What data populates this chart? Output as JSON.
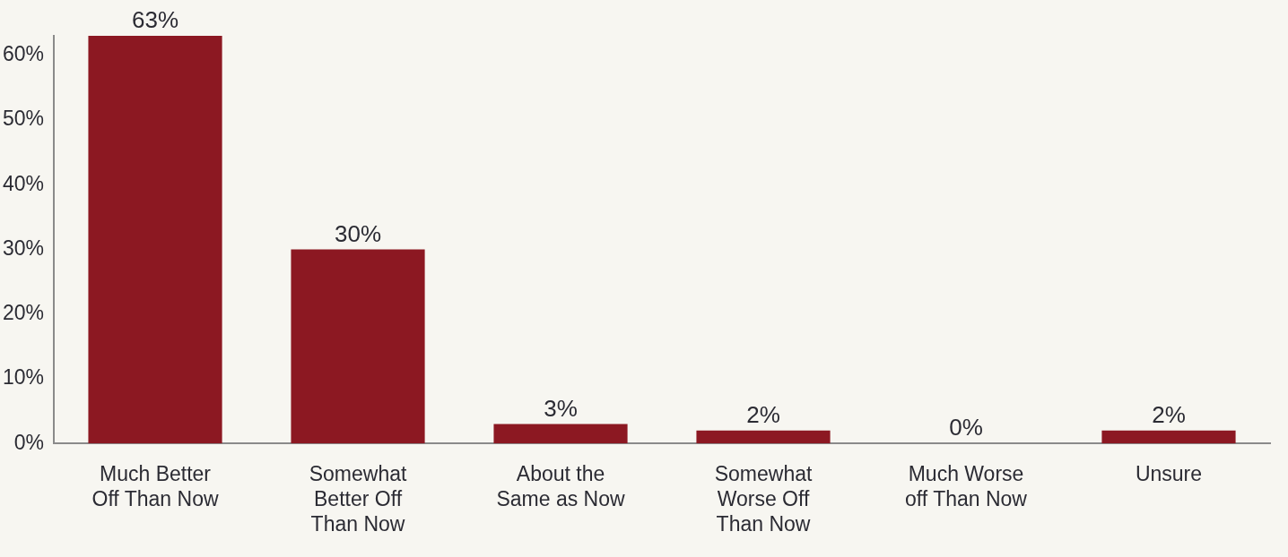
{
  "chart_data": {
    "type": "bar",
    "categories": [
      "Much Better Off Than Now",
      "Somewhat Better Off Than Now",
      "About the Same as Now",
      "Somewhat Worse Off Than Now",
      "Much Worse off Than Now",
      "Unsure"
    ],
    "values": [
      63,
      30,
      3,
      2,
      0,
      2
    ],
    "value_labels": [
      "63%",
      "30%",
      "3%",
      "2%",
      "0%",
      "2%"
    ],
    "color": "#8c1822",
    "ylim": [
      0,
      63
    ],
    "yticks": [
      {
        "value": 0,
        "label": "0%"
      },
      {
        "value": 10,
        "label": "10%"
      },
      {
        "value": 20,
        "label": "20%"
      },
      {
        "value": 30,
        "label": "30%"
      },
      {
        "value": 40,
        "label": "40%"
      },
      {
        "value": 50,
        "label": "50%"
      },
      {
        "value": 60,
        "label": "60%"
      }
    ],
    "grid": false,
    "legend": false
  }
}
